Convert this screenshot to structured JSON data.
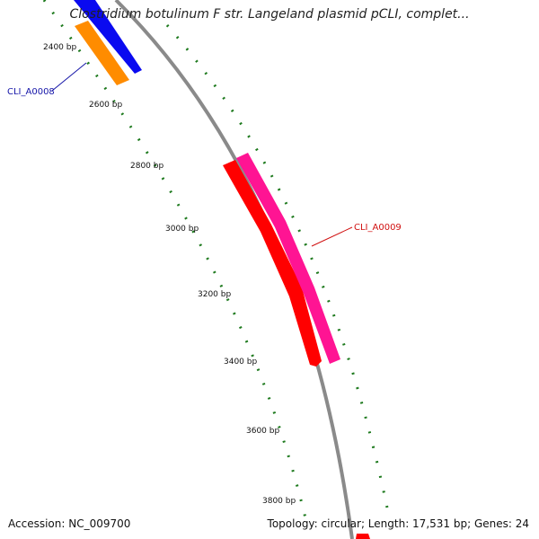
{
  "title": "Clostridium botulinum F str. Langeland plasmid pCLI, complet...",
  "footer": {
    "accession": "Accession: NC_009700",
    "summary": "Topology: circular; Length: 17,531 bp; Genes: 24"
  },
  "map": {
    "topology": "circular",
    "length_bp": 17531,
    "gene_count": 24,
    "backbone_color": "#8a8a8a",
    "tick_color": "#1e7a1e",
    "ticks": [
      {
        "bp": 2400,
        "label": "2400 bp"
      },
      {
        "bp": 2600,
        "label": "2600 bp"
      },
      {
        "bp": 2800,
        "label": "2800 bp"
      },
      {
        "bp": 3000,
        "label": "3000 bp"
      },
      {
        "bp": 3200,
        "label": "3200 bp"
      },
      {
        "bp": 3400,
        "label": "3400 bp"
      },
      {
        "bp": 3600,
        "label": "3600 bp"
      },
      {
        "bp": 3800,
        "label": "3800 bp"
      }
    ],
    "features": [
      {
        "kind": "gene",
        "color": "#0a0af0",
        "strand": "forward"
      },
      {
        "kind": "CDS",
        "color": "#ff8c00",
        "strand": "forward",
        "label": "CLI_A0008",
        "label_color": "#1515a8"
      },
      {
        "kind": "gene",
        "color": "#ff1493",
        "strand": "reverse"
      },
      {
        "kind": "CDS",
        "color": "#ff0000",
        "strand": "reverse",
        "label": "CLI_A0009",
        "label_color": "#d01010"
      },
      {
        "kind": "gene",
        "color": "#ff0000",
        "strand": "forward"
      }
    ]
  }
}
